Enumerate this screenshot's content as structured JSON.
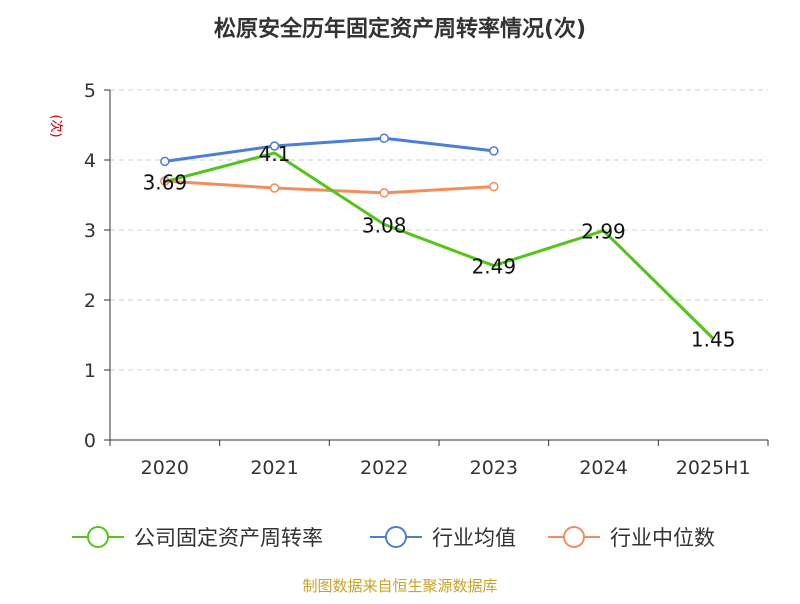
{
  "chart_data": {
    "type": "line",
    "title": "松原安全历年固定资产周转率情况(次)",
    "ylabel": "(次)",
    "categories": [
      "2020",
      "2021",
      "2022",
      "2023",
      "2024",
      "2025H1"
    ],
    "ylim": [
      0,
      5
    ],
    "yticks": [
      "0",
      "1",
      "2",
      "3",
      "4",
      "5"
    ],
    "grid": true,
    "legend_position": "bottom",
    "series": [
      {
        "name": "公司固定资产周转率",
        "color": "#52c41a",
        "values": [
          3.69,
          4.1,
          3.08,
          2.49,
          2.99,
          1.45
        ],
        "labels": [
          "3.69",
          "4.1",
          "3.08",
          "2.49",
          "2.99",
          "1.45"
        ]
      },
      {
        "name": "行业均值",
        "color": "#4a7fd4",
        "values": [
          3.98,
          4.2,
          4.31,
          4.13,
          null,
          null
        ]
      },
      {
        "name": "行业中位数",
        "color": "#f28e5c",
        "values": [
          3.7,
          3.6,
          3.53,
          3.62,
          null,
          null
        ]
      }
    ]
  },
  "footer": {
    "source": "制图数据来自恒生聚源数据库"
  },
  "colors": {
    "title": "#333333",
    "ylabel": "#cc0000",
    "footer": "#c9a227"
  }
}
